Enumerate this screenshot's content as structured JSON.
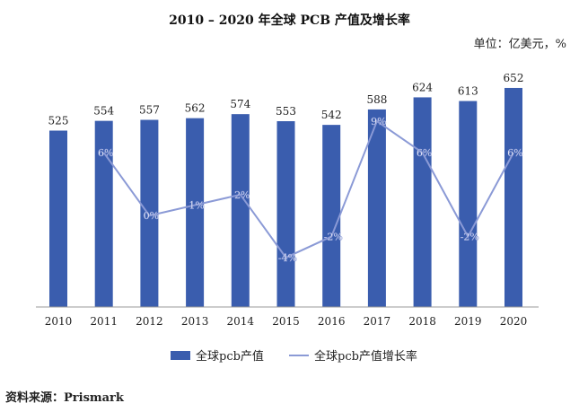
{
  "chart_data": {
    "type": "bar+line",
    "title": "2010 – 2020 年全球 PCB 产值及增长率",
    "unit_note": "单位：亿美元，%",
    "categories": [
      "2010",
      "2011",
      "2012",
      "2013",
      "2014",
      "2015",
      "2016",
      "2017",
      "2018",
      "2019",
      "2020"
    ],
    "series": [
      {
        "name": "全球pcb产值",
        "type": "bar",
        "values": [
          525,
          554,
          557,
          562,
          574,
          553,
          542,
          588,
          624,
          613,
          652
        ],
        "labels": [
          "525",
          "554",
          "557",
          "562",
          "574",
          "553",
          "542",
          "588",
          "624",
          "613",
          "652"
        ]
      },
      {
        "name": "全球pcb产值增长率",
        "type": "line",
        "values": [
          null,
          6,
          0,
          1,
          2,
          -4,
          -2,
          9,
          6,
          -2,
          6
        ],
        "labels": [
          "",
          "6%",
          "0%",
          "1%",
          "2%",
          "-4%",
          "-2%",
          "9%",
          "6%",
          "-2%",
          "6%"
        ]
      }
    ],
    "bar_range": [
      0,
      700
    ],
    "line_range": [
      -7,
      12
    ]
  },
  "colors": {
    "bar": "#3a5dae",
    "line": "#8b9ad6",
    "axis": "#999999"
  },
  "source_text": "资料来源：Prismark"
}
